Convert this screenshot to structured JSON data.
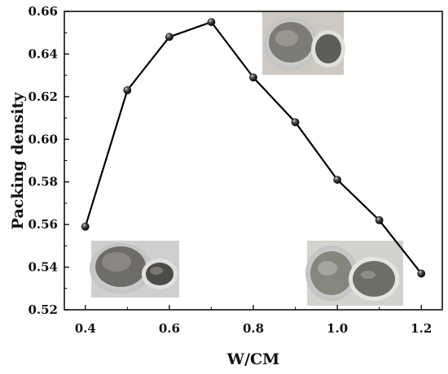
{
  "chart_data": {
    "type": "line",
    "title": "",
    "xlabel": "W/CM",
    "ylabel": "Packing density",
    "xlim": [
      0.35,
      1.25
    ],
    "ylim": [
      0.52,
      0.66
    ],
    "xticks": [
      "0.4",
      "0.6",
      "0.8",
      "1.0",
      "1.2"
    ],
    "yticks": [
      "0.52",
      "0.54",
      "0.56",
      "0.58",
      "0.60",
      "0.62",
      "0.64",
      "0.66"
    ],
    "grid": false,
    "legend": "none",
    "series": [
      {
        "x": [
          0.4,
          0.5,
          0.6,
          0.7,
          0.8,
          0.9,
          1.0,
          1.1,
          1.2
        ],
        "y": [
          0.559,
          0.623,
          0.648,
          0.655,
          0.629,
          0.608,
          0.581,
          0.562,
          0.537
        ]
      }
    ],
    "colors": {
      "line": "#000000",
      "marker": "#111111"
    },
    "insets": [
      {
        "name": "inset-photo-low-wcm",
        "near_x": 0.4,
        "description_icon": "dry-granular-paste-photo"
      },
      {
        "name": "inset-photo-mid-wcm",
        "near_x": 0.8,
        "description_icon": "damp-paste-photo"
      },
      {
        "name": "inset-photo-high-wcm",
        "near_x": 1.1,
        "description_icon": "wet-slurry-photo"
      }
    ]
  }
}
